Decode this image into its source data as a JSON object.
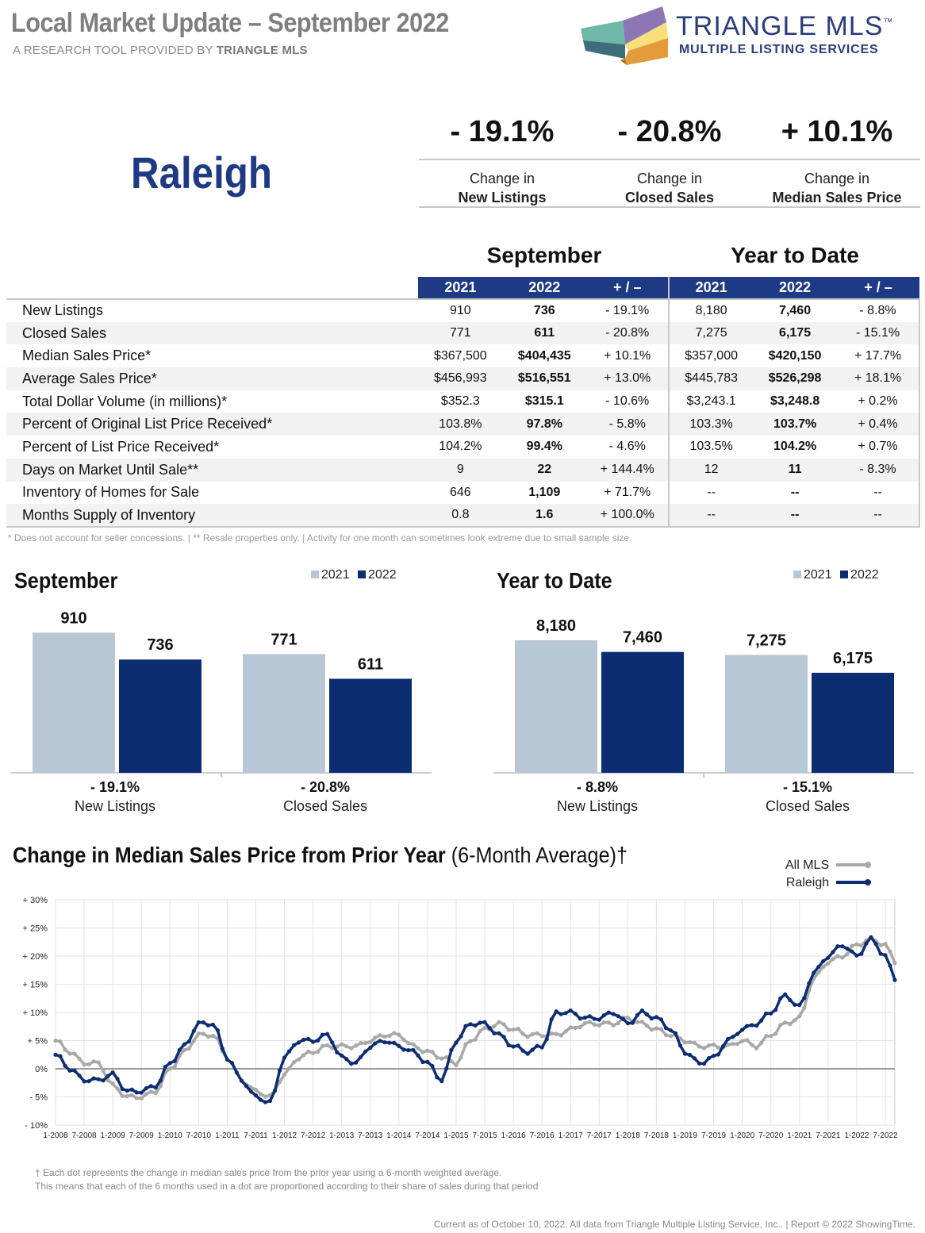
{
  "header": {
    "title": "Local Market Update – September 2022",
    "subtitle_prefix": "A RESEARCH TOOL PROVIDED BY",
    "subtitle_brand": "TRIANGLE MLS"
  },
  "logo": {
    "name": "TRIANGLE MLS",
    "trademark": "™",
    "tagline": "MULTIPLE LISTING SERVICES"
  },
  "area": "Raleigh",
  "kpis": [
    {
      "value": "- 19.1%",
      "line1": "Change in",
      "line2": "New Listings"
    },
    {
      "value": "- 20.8%",
      "line1": "Change in",
      "line2": "Closed Sales"
    },
    {
      "value": "+ 10.1%",
      "line1": "Change in",
      "line2": "Median Sales Price"
    }
  ],
  "table": {
    "group_month": "September",
    "group_ytd": "Year to Date",
    "columns": [
      "2021",
      "2022",
      "+ / –",
      "2021",
      "2022",
      "+ / –"
    ],
    "rows": [
      {
        "label": "New Listings",
        "m1": "910",
        "m2": "736",
        "mc": "- 19.1%",
        "y1": "8,180",
        "y2": "7,460",
        "yc": "- 8.8%"
      },
      {
        "label": "Closed Sales",
        "m1": "771",
        "m2": "611",
        "mc": "- 20.8%",
        "y1": "7,275",
        "y2": "6,175",
        "yc": "- 15.1%"
      },
      {
        "label": "Median Sales Price*",
        "m1": "$367,500",
        "m2": "$404,435",
        "mc": "+ 10.1%",
        "y1": "$357,000",
        "y2": "$420,150",
        "yc": "+ 17.7%"
      },
      {
        "label": "Average Sales Price*",
        "m1": "$456,993",
        "m2": "$516,551",
        "mc": "+ 13.0%",
        "y1": "$445,783",
        "y2": "$526,298",
        "yc": "+ 18.1%"
      },
      {
        "label": "Total Dollar Volume (in millions)*",
        "m1": "$352.3",
        "m2": "$315.1",
        "mc": "- 10.6%",
        "y1": "$3,243.1",
        "y2": "$3,248.8",
        "yc": "+ 0.2%"
      },
      {
        "label": "Percent of Original List Price Received*",
        "m1": "103.8%",
        "m2": "97.8%",
        "mc": "- 5.8%",
        "y1": "103.3%",
        "y2": "103.7%",
        "yc": "+ 0.4%"
      },
      {
        "label": "Percent of List Price Received*",
        "m1": "104.2%",
        "m2": "99.4%",
        "mc": "- 4.6%",
        "y1": "103.5%",
        "y2": "104.2%",
        "yc": "+ 0.7%"
      },
      {
        "label": "Days on Market Until Sale**",
        "m1": "9",
        "m2": "22",
        "mc": "+ 144.4%",
        "y1": "12",
        "y2": "11",
        "yc": "- 8.3%"
      },
      {
        "label": "Inventory of Homes for Sale",
        "m1": "646",
        "m2": "1,109",
        "mc": "+ 71.7%",
        "y1": "--",
        "y2": "--",
        "yc": "--"
      },
      {
        "label": "Months Supply of Inventory",
        "m1": "0.8",
        "m2": "1.6",
        "mc": "+ 100.0%",
        "y1": "--",
        "y2": "--",
        "yc": "--"
      }
    ],
    "footnote": "* Does not account for seller concessions.  |  ** Resale properties only.  |  Activity for one month can sometimes look extreme due to small sample size."
  },
  "colors": {
    "navy": "#0d2d72",
    "light": "#b8c7d5",
    "gray_line": "#a8a8a8",
    "accent": "#1f3a84"
  },
  "chart_data": [
    {
      "type": "bar",
      "title": "September",
      "legend": [
        "2021",
        "2022"
      ],
      "groups": [
        {
          "label": "New Listings",
          "change": "- 19.1%",
          "values": [
            910,
            736
          ],
          "value_labels": [
            "910",
            "736"
          ]
        },
        {
          "label": "Closed Sales",
          "change": "- 20.8%",
          "values": [
            771,
            611
          ],
          "value_labels": [
            "771",
            "611"
          ]
        }
      ],
      "ymax": 1000
    },
    {
      "type": "bar",
      "title": "Year to Date",
      "legend": [
        "2021",
        "2022"
      ],
      "groups": [
        {
          "label": "New Listings",
          "change": "- 8.8%",
          "values": [
            8180,
            7460
          ],
          "value_labels": [
            "8,180",
            "7,460"
          ]
        },
        {
          "label": "Closed Sales",
          "change": "- 15.1%",
          "values": [
            7275,
            6175
          ],
          "value_labels": [
            "7,275",
            "6,175"
          ]
        }
      ],
      "ymax": 9500
    },
    {
      "type": "line",
      "title_bold": "Change in Median Sales Price from Prior Year",
      "title_rest": " (6-Month Average)†",
      "ylim": [
        -10,
        30
      ],
      "yticks": [
        "+ 30%",
        "+ 25%",
        "+ 20%",
        "+ 15%",
        "+ 10%",
        "+ 5%",
        "0%",
        "- 5%",
        "- 10%"
      ],
      "ytick_values": [
        30,
        25,
        20,
        15,
        10,
        5,
        0,
        -5,
        -10
      ],
      "xticks": [
        "1-2008",
        "7-2008",
        "1-2009",
        "7-2009",
        "1-2010",
        "7-2010",
        "1-2011",
        "7-2011",
        "1-2012",
        "7-2012",
        "1-2013",
        "7-2013",
        "1-2014",
        "7-2014",
        "1-2015",
        "7-2015",
        "1-2016",
        "7-2016",
        "1-2017",
        "7-2017",
        "1-2018",
        "7-2018",
        "1-2019",
        "7-2019",
        "1-2020",
        "7-2020",
        "1-2021",
        "7-2021",
        "1-2022",
        "7-2022"
      ],
      "series": [
        {
          "name": "All MLS",
          "color": "#a8a8a8",
          "knots": [
            [
              0,
              5
            ],
            [
              3,
              3
            ],
            [
              6,
              1
            ],
            [
              9,
              1
            ],
            [
              12,
              -3
            ],
            [
              15,
              -5
            ],
            [
              18,
              -5
            ],
            [
              21,
              -4
            ],
            [
              24,
              0
            ],
            [
              27,
              3
            ],
            [
              30,
              6
            ],
            [
              33,
              6
            ],
            [
              36,
              2
            ],
            [
              39,
              -2
            ],
            [
              42,
              -4
            ],
            [
              45,
              -5
            ],
            [
              48,
              -1
            ],
            [
              51,
              2
            ],
            [
              54,
              3
            ],
            [
              57,
              4
            ],
            [
              60,
              4
            ],
            [
              63,
              4
            ],
            [
              66,
              5
            ],
            [
              69,
              6
            ],
            [
              72,
              6
            ],
            [
              75,
              4
            ],
            [
              78,
              3
            ],
            [
              81,
              2
            ],
            [
              84,
              1
            ],
            [
              87,
              5
            ],
            [
              90,
              7
            ],
            [
              93,
              8
            ],
            [
              96,
              7
            ],
            [
              99,
              6
            ],
            [
              102,
              6
            ],
            [
              105,
              6
            ],
            [
              108,
              7
            ],
            [
              111,
              8
            ],
            [
              114,
              8
            ],
            [
              117,
              8
            ],
            [
              120,
              9
            ],
            [
              123,
              8
            ],
            [
              126,
              7
            ],
            [
              129,
              6
            ],
            [
              132,
              5
            ],
            [
              135,
              4
            ],
            [
              138,
              4
            ],
            [
              141,
              4
            ],
            [
              144,
              5
            ],
            [
              147,
              4
            ],
            [
              150,
              6
            ],
            [
              153,
              8
            ],
            [
              156,
              9
            ],
            [
              159,
              16
            ],
            [
              162,
              19
            ],
            [
              165,
              20
            ],
            [
              168,
              22
            ],
            [
              171,
              23
            ],
            [
              174,
              22
            ],
            [
              176,
              19
            ]
          ]
        },
        {
          "name": "Raleigh",
          "color": "#0d2d72",
          "knots": [
            [
              0,
              2.5
            ],
            [
              3,
              0
            ],
            [
              6,
              -2
            ],
            [
              9,
              -2
            ],
            [
              12,
              -1
            ],
            [
              15,
              -4
            ],
            [
              18,
              -4
            ],
            [
              21,
              -3
            ],
            [
              24,
              1
            ],
            [
              27,
              4
            ],
            [
              30,
              8
            ],
            [
              33,
              8
            ],
            [
              36,
              2
            ],
            [
              39,
              -2
            ],
            [
              42,
              -5
            ],
            [
              45,
              -6
            ],
            [
              48,
              2
            ],
            [
              51,
              5
            ],
            [
              54,
              5
            ],
            [
              57,
              6
            ],
            [
              60,
              2
            ],
            [
              63,
              1
            ],
            [
              66,
              4
            ],
            [
              69,
              5
            ],
            [
              72,
              4
            ],
            [
              75,
              3
            ],
            [
              78,
              1
            ],
            [
              81,
              -2
            ],
            [
              84,
              5
            ],
            [
              87,
              8
            ],
            [
              90,
              8
            ],
            [
              93,
              6
            ],
            [
              96,
              4
            ],
            [
              99,
              3
            ],
            [
              102,
              4
            ],
            [
              105,
              10
            ],
            [
              108,
              10
            ],
            [
              111,
              9
            ],
            [
              114,
              9
            ],
            [
              117,
              10
            ],
            [
              120,
              8
            ],
            [
              123,
              10
            ],
            [
              126,
              9
            ],
            [
              129,
              7
            ],
            [
              132,
              3
            ],
            [
              135,
              1
            ],
            [
              138,
              2
            ],
            [
              141,
              5
            ],
            [
              144,
              7
            ],
            [
              147,
              8
            ],
            [
              150,
              10
            ],
            [
              153,
              13
            ],
            [
              156,
              11
            ],
            [
              159,
              17
            ],
            [
              162,
              20
            ],
            [
              165,
              22
            ],
            [
              168,
              20
            ],
            [
              171,
              23
            ],
            [
              174,
              20
            ],
            [
              176,
              16
            ]
          ]
        }
      ],
      "n_points": 177
    }
  ],
  "dagger_note_1": "† Each dot represents the change in median sales price from the prior year using a 6-month weighted average.",
  "dagger_note_2": "This means that each of the 6 months used in a dot are proportioned according to their share of sales during that period",
  "footer": "Current as of October 10, 2022. All data from Triangle Multiple Listing Service, Inc..  |  Report © 2022 ShowingTime."
}
